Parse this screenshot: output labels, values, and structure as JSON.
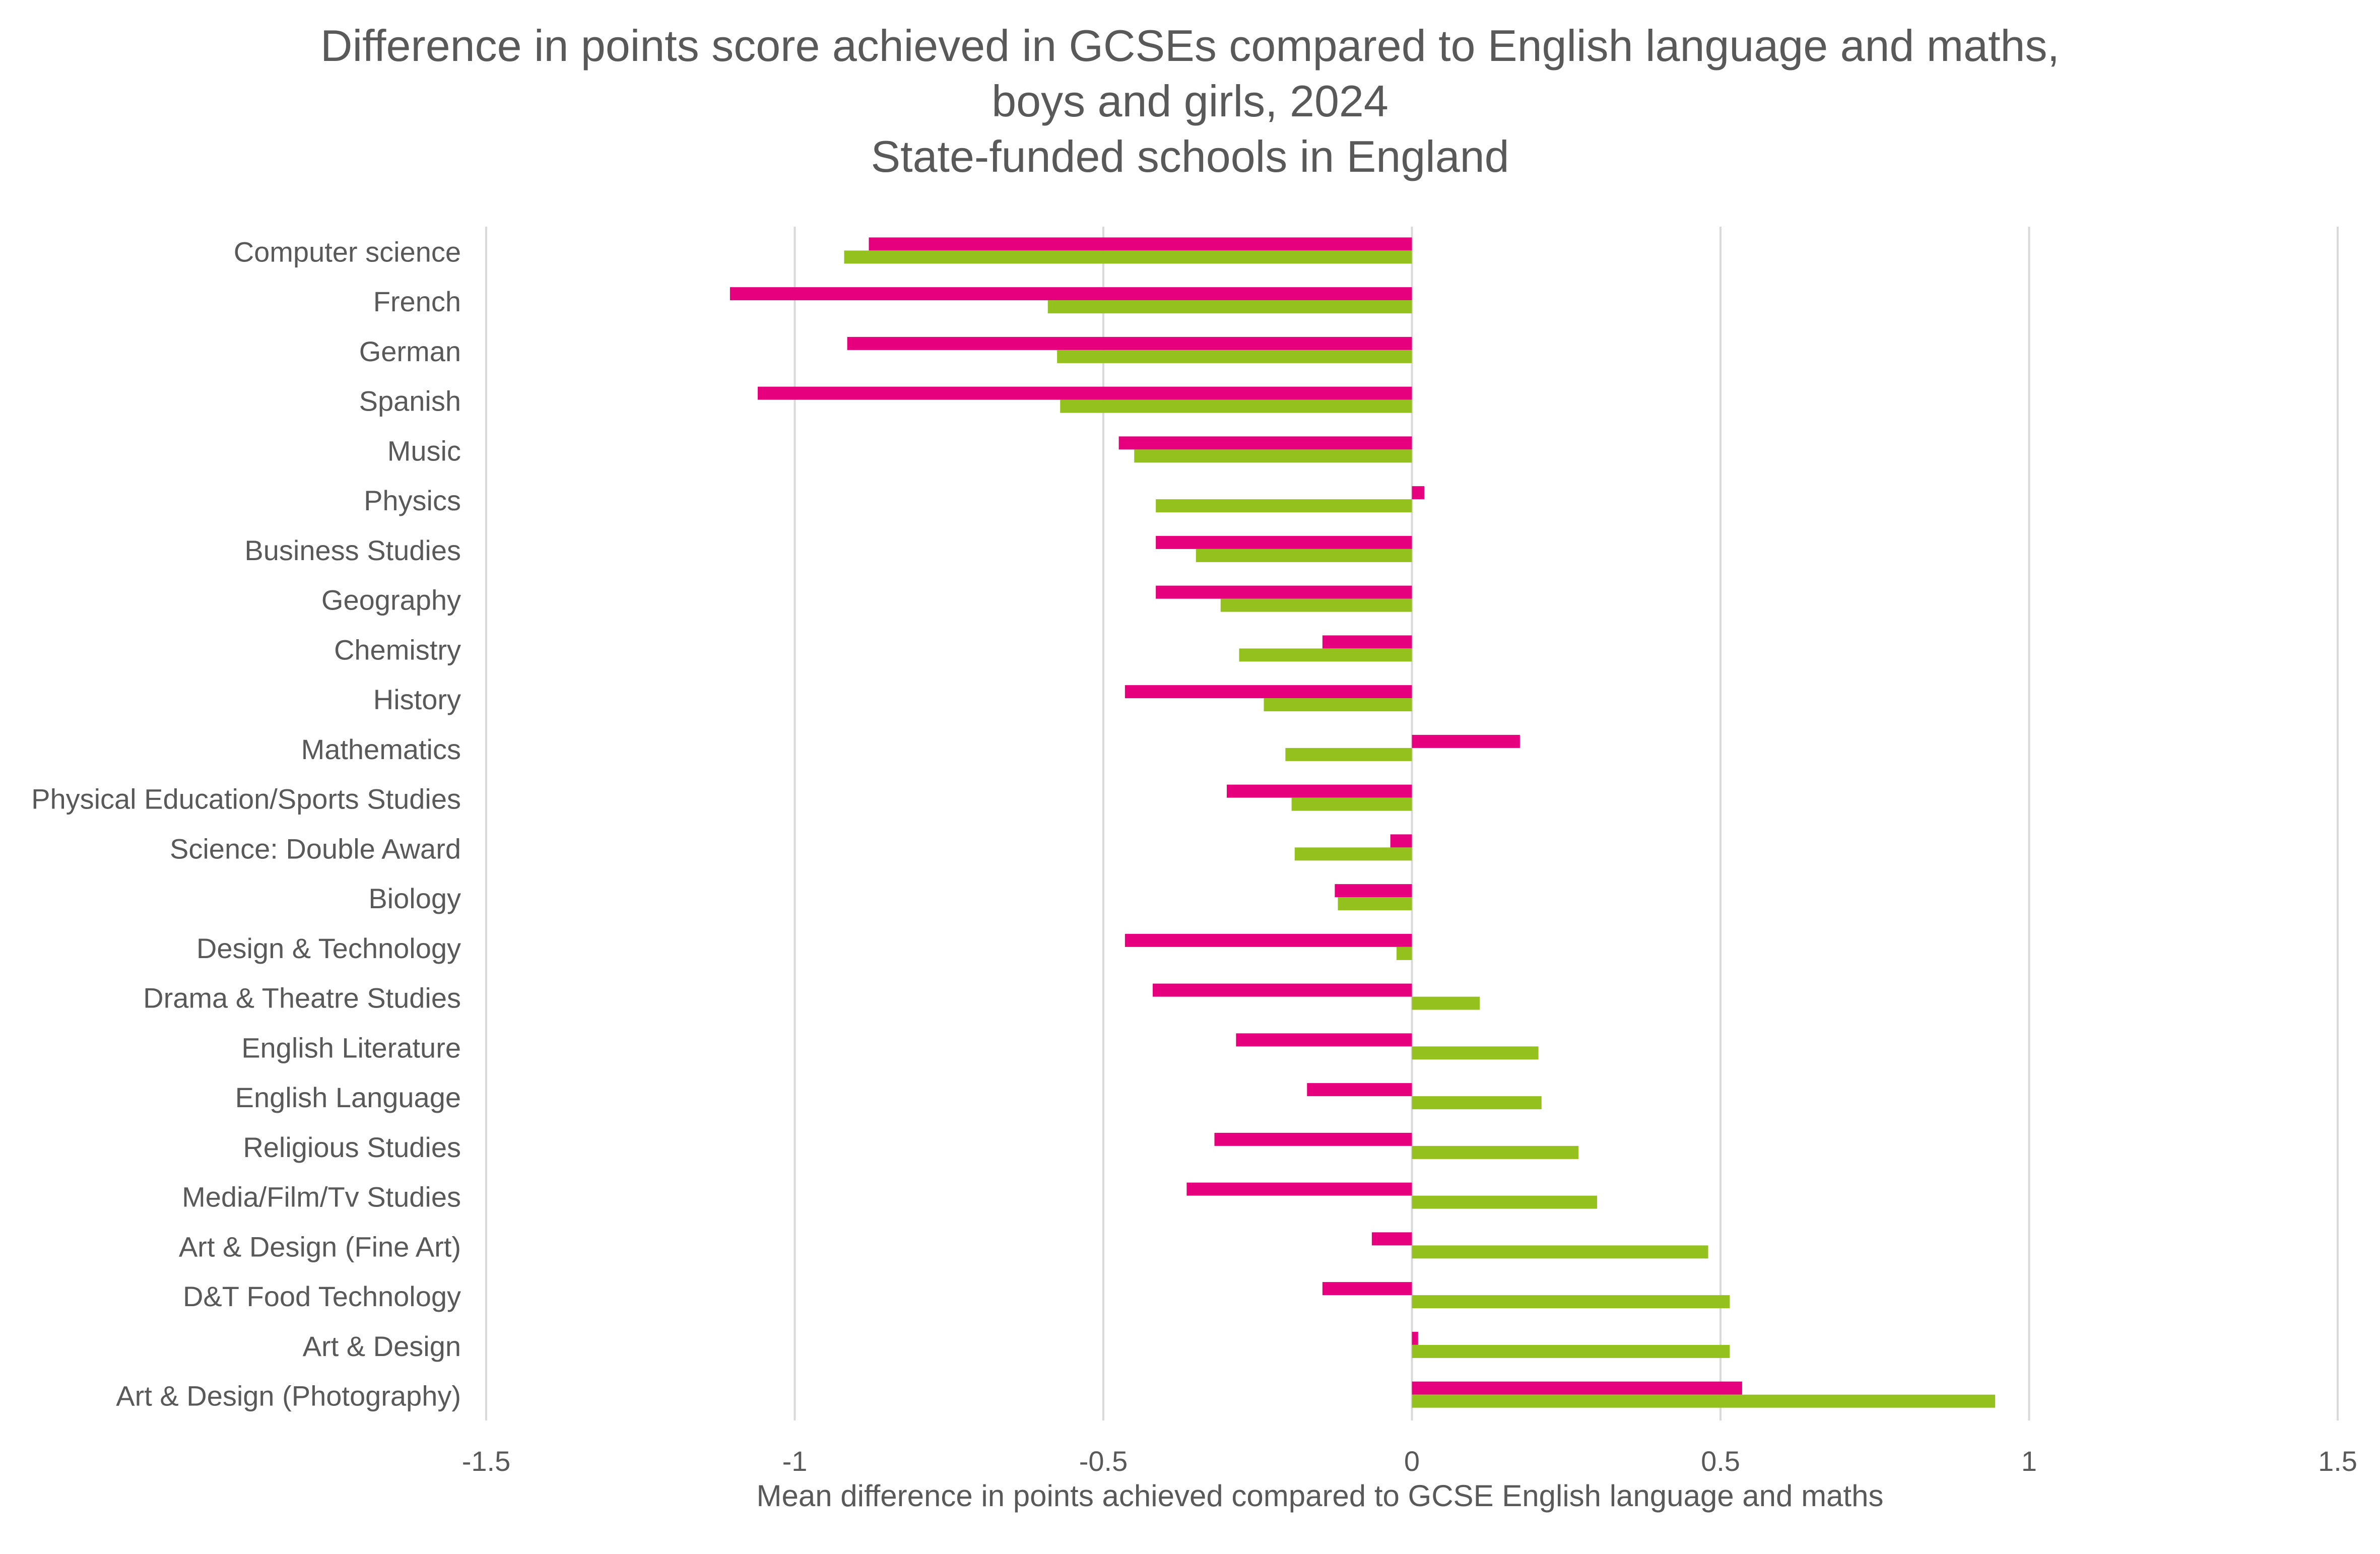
{
  "chart_data": {
    "type": "bar",
    "orientation": "horizontal",
    "title": [
      "Difference in points score achieved in GCSEs compared to English language and maths,",
      "boys and girls, 2024",
      "State-funded schools in England"
    ],
    "xlabel": "Mean difference in points achieved compared to GCSE English language and maths",
    "ylabel": "",
    "xlim": [
      -1.5,
      1.5
    ],
    "xticks": [
      "-1.5",
      "-1",
      "-0.5",
      "0",
      "0.5",
      "1",
      "1.5"
    ],
    "grid": true,
    "legend": "none",
    "categories": [
      "Computer science",
      "French",
      "German",
      "Spanish",
      "Music",
      "Physics",
      "Business Studies",
      "Geography",
      "Chemistry",
      "History",
      "Mathematics",
      "Physical Education/Sports Studies",
      "Science: Double Award",
      "Biology",
      "Design & Technology",
      "Drama & Theatre Studies",
      "English Literature",
      "English Language",
      "Religious Studies",
      "Media/Film/Tv Studies",
      "Art & Design (Fine Art)",
      "D&T Food Technology",
      "Art & Design",
      "Art & Design (Photography)"
    ],
    "series": [
      {
        "color": "#E6007E",
        "values": [
          -0.88,
          -1.105,
          -0.915,
          -1.06,
          -0.475,
          0.02,
          -0.415,
          -0.415,
          -0.145,
          -0.465,
          0.175,
          -0.3,
          -0.035,
          -0.125,
          -0.465,
          -0.42,
          -0.285,
          -0.17,
          -0.32,
          -0.365,
          -0.065,
          -0.145,
          0.01,
          0.535
        ]
      },
      {
        "color": "#95C11F",
        "values": [
          -0.92,
          -0.59,
          -0.575,
          -0.57,
          -0.45,
          -0.415,
          -0.35,
          -0.31,
          -0.28,
          -0.24,
          -0.205,
          -0.195,
          -0.19,
          -0.12,
          -0.025,
          0.11,
          0.205,
          0.21,
          0.27,
          0.3,
          0.48,
          0.515,
          0.515,
          0.945
        ]
      }
    ]
  }
}
